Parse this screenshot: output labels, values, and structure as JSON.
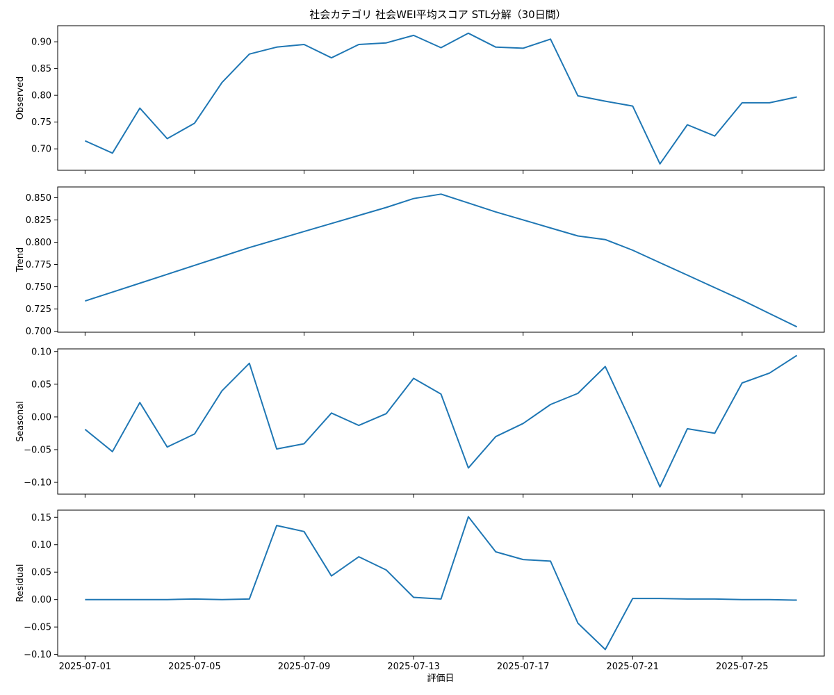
{
  "figure": {
    "title": "社会カテゴリ 社会WEI平均スコア STL分解（30日間）",
    "xlabel": "評価日"
  },
  "colors": {
    "line": "#1f77b4",
    "frame": "#000000",
    "background": "#ffffff"
  },
  "chart_data": [
    {
      "type": "line",
      "name": "observed",
      "ylabel": "Observed",
      "ylim": [
        0.66,
        0.93
      ],
      "yticks": [
        0.7,
        0.75,
        0.8,
        0.85,
        0.9
      ],
      "ytick_labels": [
        "0.70",
        "0.75",
        "0.80",
        "0.85",
        "0.90"
      ],
      "x": [
        "2025-07-01",
        "2025-07-02",
        "2025-07-03",
        "2025-07-04",
        "2025-07-05",
        "2025-07-06",
        "2025-07-07",
        "2025-07-08",
        "2025-07-09",
        "2025-07-10",
        "2025-07-11",
        "2025-07-12",
        "2025-07-13",
        "2025-07-14",
        "2025-07-15",
        "2025-07-16",
        "2025-07-17",
        "2025-07-18",
        "2025-07-19",
        "2025-07-20",
        "2025-07-21",
        "2025-07-22",
        "2025-07-23",
        "2025-07-24",
        "2025-07-25",
        "2025-07-26",
        "2025-07-27"
      ],
      "values": [
        0.715,
        0.692,
        0.776,
        0.719,
        0.748,
        0.824,
        0.877,
        0.89,
        0.895,
        0.87,
        0.895,
        0.898,
        0.912,
        0.889,
        0.916,
        0.89,
        0.888,
        0.905,
        0.799,
        0.789,
        0.78,
        0.672,
        0.745,
        0.724,
        0.786,
        0.786,
        0.797
      ],
      "x_tick_labels_visible": false
    },
    {
      "type": "line",
      "name": "trend",
      "ylabel": "Trend",
      "ylim": [
        0.699,
        0.862
      ],
      "yticks": [
        0.7,
        0.725,
        0.75,
        0.775,
        0.8,
        0.825,
        0.85
      ],
      "ytick_labels": [
        "0.700",
        "0.725",
        "0.750",
        "0.775",
        "0.800",
        "0.825",
        "0.850"
      ],
      "x": [
        "2025-07-01",
        "2025-07-02",
        "2025-07-03",
        "2025-07-04",
        "2025-07-05",
        "2025-07-06",
        "2025-07-07",
        "2025-07-08",
        "2025-07-09",
        "2025-07-10",
        "2025-07-11",
        "2025-07-12",
        "2025-07-13",
        "2025-07-14",
        "2025-07-15",
        "2025-07-16",
        "2025-07-17",
        "2025-07-18",
        "2025-07-19",
        "2025-07-20",
        "2025-07-21",
        "2025-07-22",
        "2025-07-23",
        "2025-07-24",
        "2025-07-25",
        "2025-07-26",
        "2025-07-27"
      ],
      "values": [
        0.734,
        0.744,
        0.754,
        0.764,
        0.774,
        0.784,
        0.794,
        0.803,
        0.812,
        0.821,
        0.83,
        0.839,
        0.849,
        0.854,
        0.844,
        0.834,
        0.825,
        0.816,
        0.807,
        0.803,
        0.791,
        0.777,
        0.763,
        0.749,
        0.735,
        0.72,
        0.705
      ],
      "x_tick_labels_visible": false
    },
    {
      "type": "line",
      "name": "seasonal",
      "ylabel": "Seasonal",
      "ylim": [
        -0.118,
        0.104
      ],
      "yticks": [
        -0.1,
        -0.05,
        0.0,
        0.05,
        0.1
      ],
      "ytick_labels": [
        "−0.10",
        "−0.05",
        "0.00",
        "0.05",
        "0.10"
      ],
      "x": [
        "2025-07-01",
        "2025-07-02",
        "2025-07-03",
        "2025-07-04",
        "2025-07-05",
        "2025-07-06",
        "2025-07-07",
        "2025-07-08",
        "2025-07-09",
        "2025-07-10",
        "2025-07-11",
        "2025-07-12",
        "2025-07-13",
        "2025-07-14",
        "2025-07-15",
        "2025-07-16",
        "2025-07-17",
        "2025-07-18",
        "2025-07-19",
        "2025-07-20",
        "2025-07-21",
        "2025-07-22",
        "2025-07-23",
        "2025-07-24",
        "2025-07-25",
        "2025-07-26",
        "2025-07-27"
      ],
      "values": [
        -0.019,
        -0.053,
        0.022,
        -0.046,
        -0.026,
        0.04,
        0.082,
        -0.049,
        -0.041,
        0.006,
        -0.013,
        0.005,
        0.059,
        0.035,
        -0.078,
        -0.03,
        -0.01,
        0.019,
        0.036,
        0.077,
        -0.013,
        -0.107,
        -0.018,
        -0.025,
        0.052,
        0.067,
        0.094
      ],
      "x_tick_labels_visible": false
    },
    {
      "type": "line",
      "name": "residual",
      "ylabel": "Residual",
      "ylim": [
        -0.103,
        0.163
      ],
      "yticks": [
        -0.1,
        -0.05,
        0.0,
        0.05,
        0.1,
        0.15
      ],
      "ytick_labels": [
        "−0.10",
        "−0.05",
        "0.00",
        "0.05",
        "0.10",
        "0.15"
      ],
      "x": [
        "2025-07-01",
        "2025-07-02",
        "2025-07-03",
        "2025-07-04",
        "2025-07-05",
        "2025-07-06",
        "2025-07-07",
        "2025-07-08",
        "2025-07-09",
        "2025-07-10",
        "2025-07-11",
        "2025-07-12",
        "2025-07-13",
        "2025-07-14",
        "2025-07-15",
        "2025-07-16",
        "2025-07-17",
        "2025-07-18",
        "2025-07-19",
        "2025-07-20",
        "2025-07-21",
        "2025-07-22",
        "2025-07-23",
        "2025-07-24",
        "2025-07-25",
        "2025-07-26",
        "2025-07-27"
      ],
      "values": [
        0.0,
        0.0,
        0.0,
        0.0,
        0.001,
        0.0,
        0.001,
        0.135,
        0.124,
        0.043,
        0.078,
        0.054,
        0.004,
        0.001,
        0.151,
        0.087,
        0.073,
        0.07,
        -0.043,
        -0.091,
        0.002,
        0.002,
        0.001,
        0.001,
        0.0,
        0.0,
        -0.001
      ],
      "x_tick_labels_visible": true
    }
  ],
  "x_axis": {
    "range": [
      "2025-06-30",
      "2025-07-28"
    ],
    "ticks": [
      "2025-07-01",
      "2025-07-05",
      "2025-07-09",
      "2025-07-13",
      "2025-07-17",
      "2025-07-21",
      "2025-07-25"
    ],
    "tick_labels": [
      "2025-07-01",
      "2025-07-05",
      "2025-07-09",
      "2025-07-13",
      "2025-07-17",
      "2025-07-21",
      "2025-07-25"
    ]
  }
}
